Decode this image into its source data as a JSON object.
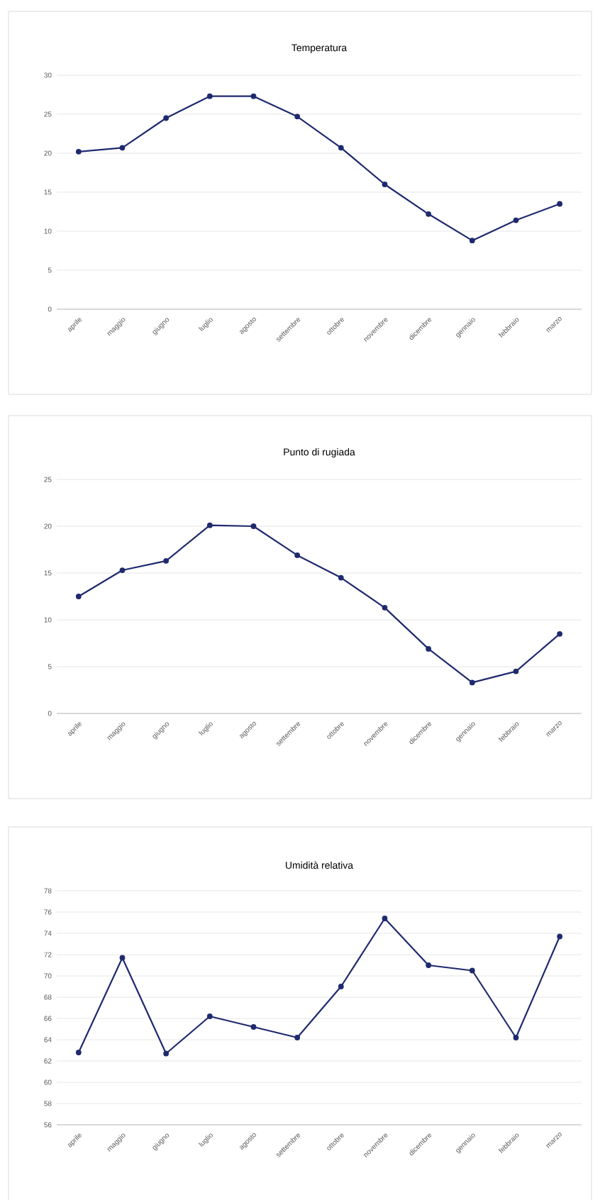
{
  "chart_data": [
    {
      "type": "line",
      "title": "Temperatura",
      "categories": [
        "aprile",
        "maggio",
        "giugno",
        "luglio",
        "agosto",
        "settembre",
        "ottobre",
        "novembre",
        "dicembre",
        "gennaio",
        "febbraio",
        "marzo"
      ],
      "series": [
        {
          "color": "#1f2a6e",
          "values": [
            20.2,
            20.7,
            24.5,
            27.3,
            27.3,
            24.7,
            20.7,
            16.0,
            12.2,
            8.8,
            11.4,
            13.5
          ]
        }
      ],
      "ylim": [
        0,
        30
      ],
      "yticks": [
        0,
        5,
        10,
        15,
        20,
        25,
        30
      ],
      "grid": "y",
      "marker": "circle",
      "line_style": "solid"
    },
    {
      "type": "line",
      "title": "Punto di rugiada",
      "categories": [
        "aprile",
        "maggio",
        "giugno",
        "luglio",
        "agosto",
        "settembre",
        "ottobre",
        "novembre",
        "dicembre",
        "gennaio",
        "febbraio",
        "marzo"
      ],
      "series": [
        {
          "color": "#1f2a6e",
          "values": [
            12.5,
            15.3,
            16.3,
            20.1,
            20.0,
            16.9,
            14.5,
            11.3,
            6.9,
            3.3,
            4.5,
            8.5
          ]
        }
      ],
      "ylim": [
        0,
        25
      ],
      "yticks": [
        0,
        5,
        10,
        15,
        20,
        25
      ],
      "grid": "y",
      "marker": "circle",
      "line_style": "solid"
    },
    {
      "type": "line",
      "title": "Umidità relativa",
      "categories": [
        "aprile",
        "maggio",
        "giugno",
        "luglio",
        "agosto",
        "settembre",
        "ottobre",
        "novembre",
        "dicembre",
        "gennaio",
        "febbraio",
        "marzo"
      ],
      "series": [
        {
          "color": "#1f2a6e",
          "values": [
            62.8,
            71.7,
            62.7,
            66.2,
            65.2,
            64.2,
            69.0,
            75.4,
            71.0,
            70.5,
            64.2,
            73.7
          ]
        }
      ],
      "ylim": [
        56,
        78
      ],
      "yticks": [
        56,
        58,
        60,
        62,
        64,
        66,
        68,
        70,
        72,
        74,
        76,
        78
      ],
      "grid": "y",
      "marker": "circle",
      "line_style": "solid"
    }
  ]
}
